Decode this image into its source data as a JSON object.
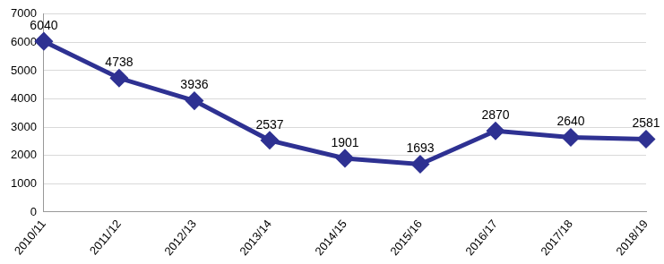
{
  "chart_data": {
    "type": "line",
    "categories": [
      "2010/11",
      "2011/12",
      "2012/13",
      "2013/14",
      "2014/15",
      "2015/16",
      "2016/17",
      "2017/18",
      "2018/19"
    ],
    "values": [
      6040,
      4738,
      3936,
      2537,
      1901,
      1693,
      2870,
      2640,
      2581
    ],
    "color": "#2e3192",
    "marker": "diamond",
    "line_style": "solid",
    "ylim": [
      0,
      7000
    ],
    "yticks": [
      0,
      1000,
      2000,
      3000,
      4000,
      5000,
      6000,
      7000
    ],
    "grid": true,
    "data_labels": true
  }
}
